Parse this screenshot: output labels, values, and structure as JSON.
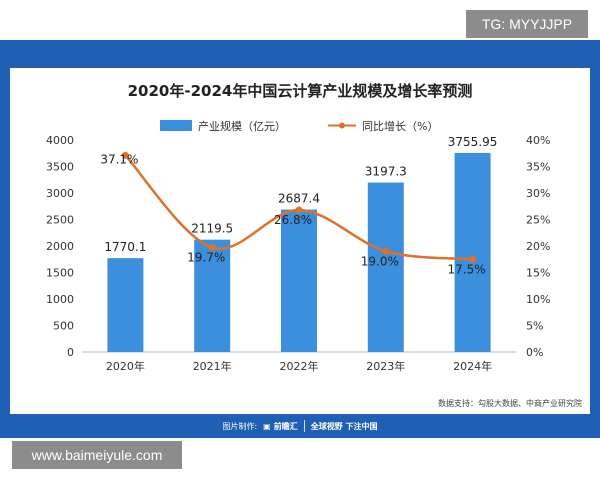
{
  "watermark_top": "TG: MYYJJPP",
  "watermark_bottom": "www.baimeiyule.com",
  "footer": {
    "label": "图片制作:",
    "brand": "前瞻汇",
    "slogan": "全球视野 下注中国"
  },
  "source_note": "数据支持：勾股大数据、中商产业研究院",
  "colors": {
    "bar": "#3b8fdc",
    "line": "#e0702a",
    "frame": "#1f5fb4",
    "text": "#333333"
  },
  "chart_data": {
    "type": "bar",
    "title": "2020年-2024年中国云计算产业规模及增长率预测",
    "categories": [
      "2020年",
      "2021年",
      "2022年",
      "2023年",
      "2024年"
    ],
    "series": [
      {
        "name": "产业规模（亿元）",
        "type": "bar",
        "axis": "left",
        "values": [
          1770.1,
          2119.5,
          2687.4,
          3197.3,
          3755.95
        ],
        "labels": [
          "1770.1",
          "2119.5",
          "2687.4",
          "3197.3",
          "3755.95"
        ]
      },
      {
        "name": "同比增长（%）",
        "type": "line",
        "axis": "right",
        "values": [
          37.1,
          19.7,
          26.8,
          19.0,
          17.5
        ],
        "labels": [
          "37.1%",
          "19.7%",
          "26.8%",
          "19.0%",
          "17.5%"
        ]
      }
    ],
    "ylim_left": [
      0,
      4000
    ],
    "yticks_left": [
      "0",
      "500",
      "1000",
      "1500",
      "2000",
      "2500",
      "3000",
      "3500",
      "4000"
    ],
    "ylim_right": [
      0,
      40
    ],
    "yticks_right": [
      "0%",
      "5%",
      "10%",
      "15%",
      "20%",
      "25%",
      "30%",
      "35%",
      "40%"
    ],
    "legend_position": "top-center",
    "grid": false
  }
}
